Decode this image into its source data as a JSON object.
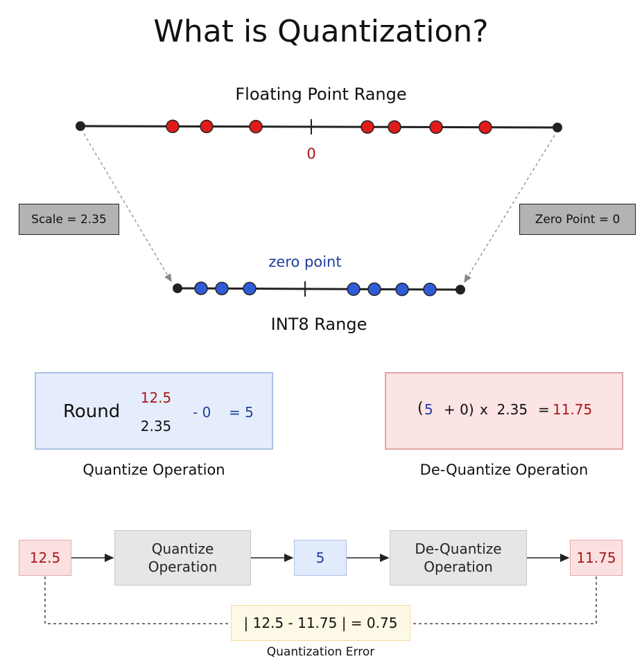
{
  "title": "What is Quantization?",
  "float_range": {
    "label": "Floating Point Range",
    "zero_label": "0",
    "point_color": "#e01b1b"
  },
  "int8_range": {
    "label": "INT8 Range",
    "zero_label": "zero point",
    "point_color": "#2f5bd6"
  },
  "scale_label": "Scale = 2.35",
  "zero_point_label": "Zero Point = 0",
  "quantize": {
    "round_word": "Round",
    "numerator": "12.5",
    "denominator": "2.35",
    "minus_zero": "- 0",
    "result": "= 5",
    "caption": "Quantize Operation"
  },
  "dequantize": {
    "open_paren": "(",
    "q_value": "5",
    "plus_zero": "+ 0)",
    "times_scale": "x  2.35",
    "equals": "=",
    "result": "11.75",
    "caption": "De-Quantize Operation"
  },
  "flow": {
    "input": "12.5",
    "quantize_op": [
      "Quantize",
      "Operation"
    ],
    "quantized": "5",
    "dequantize_op": [
      "De-Quantize",
      "Operation"
    ],
    "output": "11.75",
    "error_expr": "| 12.5 - 11.75 | = 0.75",
    "error_caption": "Quantization Error"
  },
  "colors": {
    "red_text": "#a51818",
    "blue_text": "#1f3e9e",
    "line": "#222222"
  }
}
